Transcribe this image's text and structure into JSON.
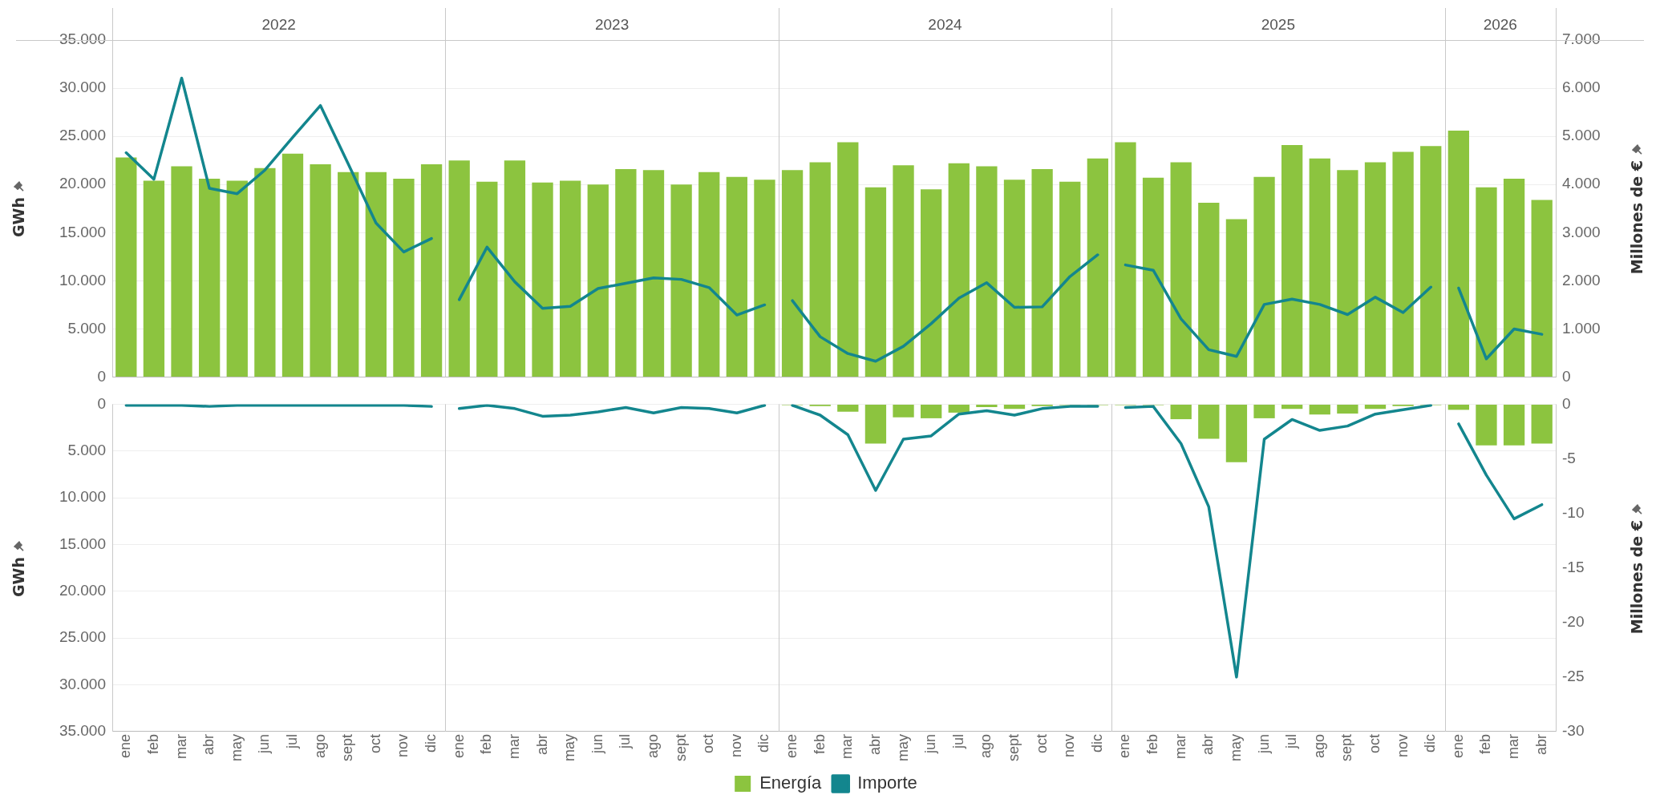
{
  "chart_data": [
    {
      "type": "bar",
      "annotations": [
        "2022",
        "2023",
        "2024",
        "2025",
        "2026"
      ],
      "ylabel": "GWh",
      "y2label": "Millones de €",
      "tick_labels": "y",
      "grid": "y",
      "legend": false,
      "categories": [
        null,
        null,
        null,
        null,
        null,
        null,
        null,
        null,
        null,
        null,
        null,
        null,
        null,
        null,
        null,
        null,
        null,
        null,
        null,
        null,
        null,
        null,
        null,
        null,
        null,
        null,
        null,
        null,
        null,
        null,
        null,
        null,
        null,
        null,
        null,
        null,
        null,
        null,
        null,
        null,
        null,
        null,
        null,
        null,
        null,
        null,
        null,
        null,
        null,
        null,
        null,
        null
      ],
      "ylim": [
        0,
        35000
      ],
      "yticks": [
        0,
        {
          "value": 5000,
          "label": "5.000"
        },
        {
          "value": 10000,
          "label": "10.000"
        },
        {
          "value": 15000,
          "label": "15.000"
        },
        {
          "value": 20000,
          "label": "20.000"
        },
        {
          "value": 25000,
          "label": "25.000"
        },
        {
          "value": 30000,
          "label": "30.000"
        },
        {
          "value": 35000,
          "label": "35.000"
        }
      ],
      "y2lim": [
        0,
        7000
      ],
      "y2ticks": [
        0,
        {
          "value": 1000,
          "label": "1.000"
        },
        {
          "value": 2000,
          "label": "2.000"
        },
        {
          "value": 3000,
          "label": "3.000"
        },
        {
          "value": 4000,
          "label": "4.000"
        },
        {
          "value": 5000,
          "label": "5.000"
        },
        {
          "value": 6000,
          "label": "6.000"
        },
        {
          "value": 7000,
          "label": "7.000"
        }
      ],
      "series": [
        {
          "color": "#8cc43f",
          "values": [
            22800,
            20400,
            21900,
            20600,
            20400,
            21700,
            23200,
            22100,
            21300,
            21300,
            20600,
            22100,
            22500,
            20300,
            22500,
            20200,
            20400,
            20000,
            21600,
            21500,
            20000,
            21300,
            20800,
            20500,
            21500,
            22300,
            24400,
            19700,
            22000,
            19500,
            22200,
            21900,
            20500,
            21600,
            20300,
            22700,
            24400,
            20700,
            22300,
            18100,
            16400,
            20800,
            24100,
            22700,
            21500,
            22300,
            23400,
            24000,
            25600,
            19700,
            20600,
            18400
          ]
        },
        {
          "type": "line",
          "axis": "y2",
          "color": "#13868e",
          "values": [
            4660,
            4110,
            6210,
            3920,
            3810,
            4300,
            4980,
            5640,
            4430,
            3200,
            2600,
            2880,
            1610,
            2700,
            1980,
            1430,
            1470,
            1840,
            1950,
            2060,
            2030,
            1860,
            1290,
            1500,
            1590,
            840,
            490,
            330,
            640,
            1110,
            1640,
            1960,
            1450,
            1460,
            2090,
            2540,
            2330,
            2220,
            1210,
            570,
            430,
            1510,
            1620,
            1510,
            1300,
            1660,
            1340,
            1870,
            1850,
            380,
            1000,
            890
          ]
        }
      ]
    },
    {
      "type": "bar",
      "ylabel": "GWh",
      "y2label": "Millones de €",
      "grid": "y",
      "legend": "bottom",
      "categories": [
        "ene",
        "feb",
        "mar",
        "abr",
        "may",
        "jun",
        "jul",
        "ago",
        "sept",
        "oct",
        "nov",
        "dic",
        "ene",
        "feb",
        "mar",
        "abr",
        "may",
        "jun",
        "jul",
        "ago",
        "sept",
        "oct",
        "nov",
        "dic",
        "ene",
        "feb",
        "mar",
        "abr",
        "may",
        "jun",
        "jul",
        "ago",
        "sept",
        "oct",
        "nov",
        "dic",
        "ene",
        "feb",
        "mar",
        "abr",
        "may",
        "jun",
        "jul",
        "ago",
        "sept",
        "oct",
        "nov",
        "dic",
        "ene",
        "feb",
        "mar",
        "abr"
      ],
      "ylim": [
        35000,
        0
      ],
      "yticks": [
        0,
        {
          "value": 5000,
          "label": "5.000"
        },
        {
          "value": 10000,
          "label": "10.000"
        },
        {
          "value": 15000,
          "label": "15.000"
        },
        {
          "value": 20000,
          "label": "20.000"
        },
        {
          "value": 25000,
          "label": "25.000"
        },
        {
          "value": 30000,
          "label": "30.000"
        },
        {
          "value": 35000,
          "label": "35.000"
        }
      ],
      "y2lim": [
        -30,
        0
      ],
      "y2ticks": [
        0,
        -5,
        -10,
        -15,
        -20,
        -25,
        -30
      ],
      "series": [
        {
          "name": "Energía",
          "color": "#8cc43f",
          "values": [
            null,
            null,
            null,
            null,
            null,
            null,
            null,
            null,
            null,
            null,
            null,
            null,
            null,
            null,
            null,
            null,
            null,
            null,
            null,
            null,
            null,
            null,
            null,
            null,
            100,
            200,
            800,
            4200,
            1400,
            1500,
            900,
            300,
            500,
            200,
            100,
            100,
            100,
            100,
            1600,
            3700,
            6200,
            1500,
            500,
            1100,
            1000,
            500,
            200,
            100,
            600,
            4400,
            4400,
            4200
          ]
        },
        {
          "type": "line",
          "axis": "y2",
          "name": "Importe",
          "color": "#13868e",
          "values": [
            -0.1,
            -0.1,
            -0.1,
            -0.2,
            -0.1,
            -0.1,
            -0.1,
            -0.1,
            -0.1,
            -0.1,
            -0.1,
            -0.2,
            -0.4,
            -0.1,
            -0.4,
            -1.1,
            -1.0,
            -0.7,
            -0.3,
            -0.8,
            -0.3,
            -0.4,
            -0.8,
            -0.1,
            -0.1,
            -1.0,
            -2.8,
            -7.9,
            -3.2,
            -2.9,
            -0.9,
            -0.6,
            -1.0,
            -0.4,
            -0.2,
            -0.2,
            -0.3,
            -0.2,
            -3.6,
            -9.4,
            -25.0,
            -3.2,
            -1.4,
            -2.4,
            -2.0,
            -0.9,
            -0.5,
            -0.1,
            -1.8,
            -6.5,
            -10.5,
            -9.2
          ]
        }
      ]
    }
  ]
}
